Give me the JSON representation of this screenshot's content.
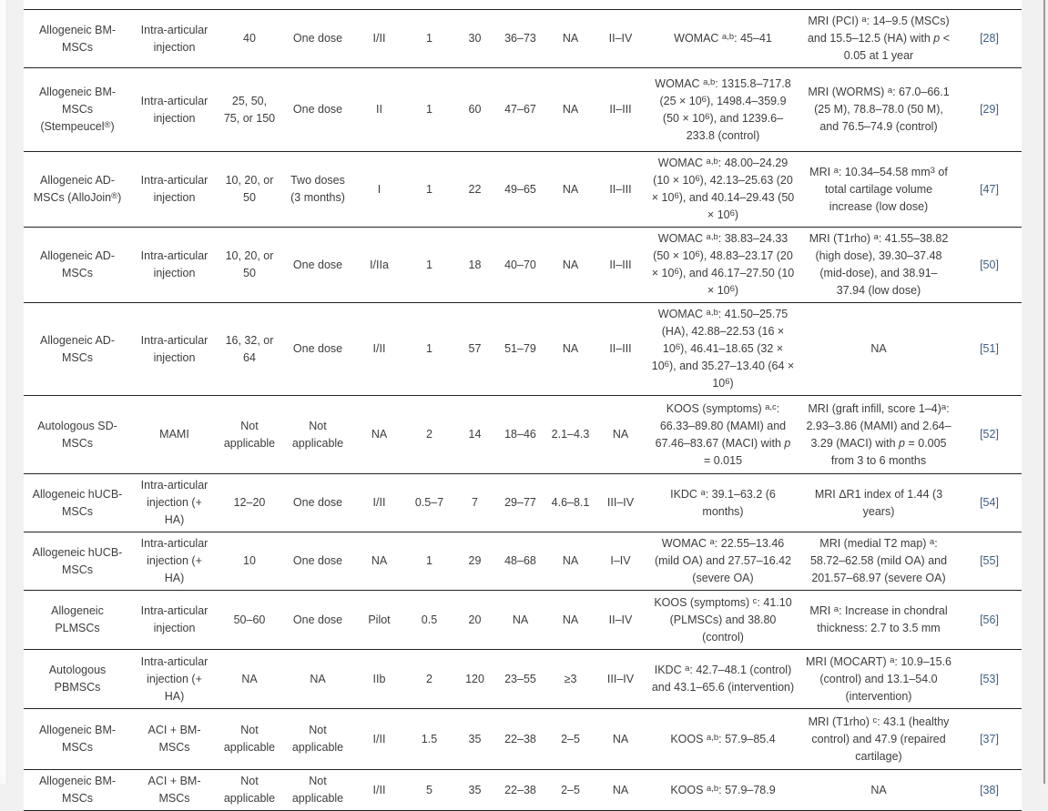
{
  "table": {
    "rows": [
      [
        "Allogeneic BM-MSCs",
        "Intra-articular injection",
        "40",
        "One dose",
        "I/II",
        "1",
        "30",
        "36–73",
        "NA",
        "II–IV",
        "WOMAC ^{a,b}: 45–41",
        "MRI (PCI) ^{a}: 14–9.5 (MSCs) and 15.5–12.5 (HA) with *p* < 0.05 at 1 year",
        "[28]"
      ],
      [
        "Allogeneic BM-MSCs (Stempeucel^{®})",
        "Intra-articular injection",
        "25, 50, 75, or 150",
        "One dose",
        "II",
        "1",
        "60",
        "47–67",
        "NA",
        "II–III",
        "WOMAC ^{a,b}: 1315.8–717.8 (25 × 10^{6}), 1498.4–359.9 (50 × 10^{6}), and 1239.6–233.8 (control)",
        "MRI (WORMS) ^{a}: 67.0–66.1 (25 M), 78.8–78.0 (50 M), and 76.5–74.9 (control)",
        "[29]"
      ],
      [
        "Allogeneic AD-MSCs (AlloJoin^{®})",
        "Intra-articular injection",
        "10, 20, or 50",
        "Two doses (3 months)",
        "I",
        "1",
        "22",
        "49–65",
        "NA",
        "II–III",
        "WOMAC ^{a,b}: 48.00–24.29 (10 × 10^{6}), 42.13–25.63 (20 × 10^{6}), and 40.14–29.43 (50 × 10^{6})",
        "MRI ^{a}: 10.34–54.58 mm^{3} of total cartilage volume increase (low dose)",
        "[47]"
      ],
      [
        "Allogeneic AD-MSCs",
        "Intra-articular injection",
        "10, 20, or 50",
        "One dose",
        "I/IIa",
        "1",
        "18",
        "40–70",
        "NA",
        "II–III",
        "WOMAC ^{a,b}: 38.83–24.33 (50 × 10^{6}), 48.83–23.17 (20 × 10^{6}), and 46.17–27.50 (10 × 10^{6})",
        "MRI (T1rho) ^{a}: 41.55–38.82 (high dose), 39.30–37.48 (mid-dose), and 38.91–37.94 (low dose)",
        "[50]"
      ],
      [
        "Allogeneic AD-MSCs",
        "Intra-articular injection",
        "16, 32, or 64",
        "One dose",
        "I/II",
        "1",
        "57",
        "51–79",
        "NA",
        "II–III",
        "WOMAC ^{a,b}: 41.50–25.75 (HA), 42.88–22.53 (16 × 10^{6}), 46.41–18.65 (32 × 10^{6}), and 35.27–13.40 (64 × 10^{6})",
        "NA",
        "[51]"
      ],
      [
        "Autologous SD-MSCs",
        "MAMI",
        "Not applicable",
        "Not applicable",
        "NA",
        "2",
        "14",
        "18–46",
        "2.1–4.3",
        "NA",
        "KOOS (symptoms) ^{a,c}: 66.33–89.80 (MAMI) and 67.46–83.67 (MACI) with *p* = 0.015",
        "MRI (graft infill, score 1–4)^{a}: 2.93–3.86 (MAMI) and 2.64–3.29 (MACI) with *p* = 0.005 from 3 to 6 months",
        "[52]"
      ],
      [
        "Allogeneic hUCB-MSCs",
        "Intra-articular injection (+ HA)",
        "12–20",
        "One dose",
        "I/II",
        "0.5–7",
        "7",
        "29–77",
        "4.6–8.1",
        "III–IV",
        "IKDC ^{a}: 39.1–63.2 (6 months)",
        "MRI ΔR1 index of 1.44 (3 years)",
        "[54]"
      ],
      [
        "Allogeneic hUCB-MSCs",
        "Intra-articular injection (+ HA)",
        "10",
        "One dose",
        "NA",
        "1",
        "29",
        "48–68",
        "NA",
        "I–IV",
        "WOMAC ^{a}: 22.55–13.46 (mild OA) and 27.57–16.42 (severe OA)",
        "MRI (medial T2 map) ^{a}: 58.72–62.58 (mild OA) and 201.57–68.97 (severe OA)",
        "[55]"
      ],
      [
        "Allogeneic PLMSCs",
        "Intra-articular injection",
        "50–60",
        "One dose",
        "Pilot",
        "0.5",
        "20",
        "NA",
        "NA",
        "II–IV",
        "KOOS (symptoms) ^{c}: 41.10 (PLMSCs) and 38.80 (control)",
        "MRI ^{a}: Increase in chondral thickness: 2.7 to 3.5 mm",
        "[56]"
      ],
      [
        "Autologous PBMSCs",
        "Intra-articular injection (+ HA)",
        "NA",
        "NA",
        "IIb",
        "2",
        "120",
        "23–55",
        "≥3",
        "III–IV",
        "IKDC ^{a}: 42.7–48.1 (control) and 43.1–65.6 (intervention)",
        "MRI (MOCART) ^{a}: 10.9–15.6 (control) and 13.1–54.0 (intervention)",
        "[53]"
      ],
      [
        "Allogeneic BM-MSCs",
        "ACI + BM-MSCs",
        "Not applicable",
        "Not applicable",
        "I/II",
        "1.5",
        "35",
        "22–38",
        "2–5",
        "NA",
        "KOOS ^{a,b}: 57.9–85.4",
        "MRI (T1rho) ^{c}: 43.1 (healthy control) and 47.9 (repaired cartilage)",
        "[37]"
      ],
      [
        "Allogeneic BM-MSCs",
        "ACI + BM-MSCs",
        "Not applicable",
        "Not applicable",
        "I/II",
        "5",
        "35",
        "22–38",
        "2–5",
        "NA",
        "KOOS ^{a,b}: 57.9–78.9",
        "NA",
        "[38]"
      ]
    ]
  },
  "colors": {
    "body_text": "#3d3d3d",
    "reference_link": "#3f5e82",
    "row_divider": "#222222",
    "page_margin": "#f1f1f1"
  }
}
